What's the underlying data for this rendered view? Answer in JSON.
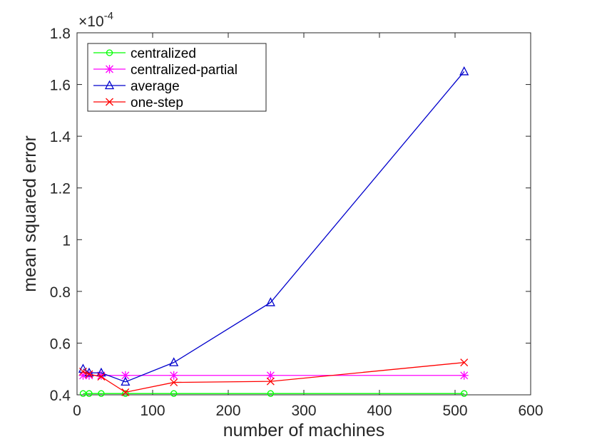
{
  "chart_data": {
    "type": "line",
    "title": "",
    "xlabel": "number of machines",
    "ylabel": "mean squared error",
    "xlim": [
      0,
      600
    ],
    "ylim": [
      0.4,
      1.8
    ],
    "y_scale_exponent": "×10",
    "y_scale_power": "-4",
    "x_ticks": [
      "0",
      "100",
      "200",
      "300",
      "400",
      "500",
      "600"
    ],
    "y_ticks": [
      "0.4",
      "0.6",
      "0.8",
      "1",
      "1.2",
      "1.4",
      "1.6",
      "1.8"
    ],
    "x": [
      8,
      16,
      32,
      64,
      128,
      256,
      512
    ],
    "legend_position": "top-left",
    "series": [
      {
        "name": "centralized",
        "color": "#00ff00",
        "marker": "circle",
        "values": [
          0.405,
          0.405,
          0.405,
          0.405,
          0.405,
          0.405,
          0.405
        ]
      },
      {
        "name": "centralized-partial",
        "color": "#ff00ff",
        "marker": "asterisk",
        "values": [
          0.475,
          0.475,
          0.475,
          0.475,
          0.475,
          0.475,
          0.475
        ]
      },
      {
        "name": "average",
        "color": "#0000cc",
        "marker": "triangle",
        "values": [
          0.5,
          0.485,
          0.485,
          0.45,
          0.525,
          0.757,
          1.65
        ]
      },
      {
        "name": "one-step",
        "color": "#ff0000",
        "marker": "x",
        "values": [
          0.49,
          0.48,
          0.47,
          0.41,
          0.448,
          0.452,
          0.525
        ]
      }
    ]
  }
}
